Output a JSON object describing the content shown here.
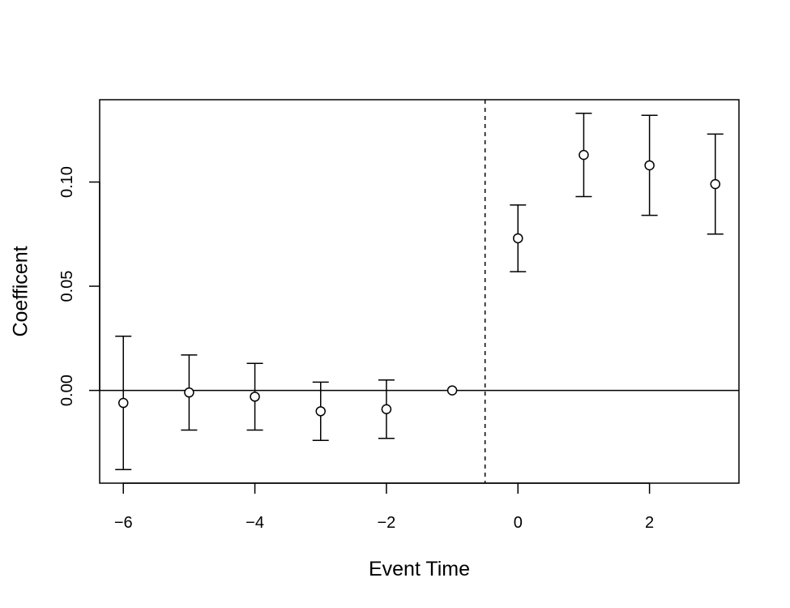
{
  "chart_data": {
    "type": "scatter",
    "title": "",
    "xlabel": "Event Time",
    "ylabel": "Coefficent",
    "xlim": [
      -6.36,
      3.36
    ],
    "ylim": [
      -0.0445,
      0.1395
    ],
    "x_ticks": [
      -6,
      -4,
      -2,
      0,
      2
    ],
    "x_tick_labels": [
      "−6",
      "−4",
      "−2",
      "0",
      "2"
    ],
    "y_ticks": [
      0.0,
      0.05,
      0.1
    ],
    "y_tick_labels": [
      "0.00",
      "0.05",
      "0.10"
    ],
    "reference_hline": 0,
    "reference_vline": -0.5,
    "grid": false,
    "legend": "none",
    "series": [
      {
        "points": [
          {
            "x": -6,
            "y": -0.006,
            "lower": -0.038,
            "upper": 0.026
          },
          {
            "x": -5,
            "y": -0.001,
            "lower": -0.019,
            "upper": 0.017
          },
          {
            "x": -4,
            "y": -0.003,
            "lower": -0.019,
            "upper": 0.013
          },
          {
            "x": -3,
            "y": -0.01,
            "lower": -0.024,
            "upper": 0.004
          },
          {
            "x": -2,
            "y": -0.009,
            "lower": -0.023,
            "upper": 0.005
          },
          {
            "x": -1,
            "y": 0.0,
            "lower": null,
            "upper": null
          },
          {
            "x": 0,
            "y": 0.073,
            "lower": 0.057,
            "upper": 0.089
          },
          {
            "x": 1,
            "y": 0.113,
            "lower": 0.093,
            "upper": 0.133
          },
          {
            "x": 2,
            "y": 0.108,
            "lower": 0.084,
            "upper": 0.132
          },
          {
            "x": 3,
            "y": 0.099,
            "lower": 0.075,
            "upper": 0.123
          }
        ]
      }
    ]
  }
}
